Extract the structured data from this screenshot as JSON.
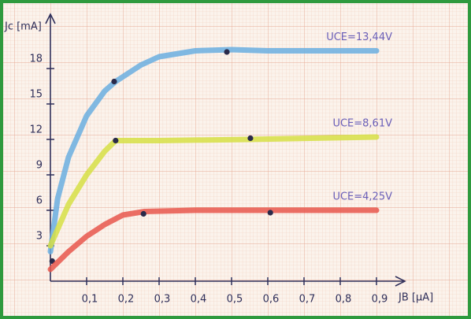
{
  "chart_data": {
    "type": "line",
    "x_label": "JB [μA]",
    "y_label": "Jc [mA]",
    "xlim": [
      0,
      0.98
    ],
    "ylim": [
      0,
      22.5
    ],
    "xticks": [
      {
        "value": 0.1,
        "label": "0,1"
      },
      {
        "value": 0.2,
        "label": "0,2"
      },
      {
        "value": 0.3,
        "label": "0,3"
      },
      {
        "value": 0.4,
        "label": "0,4"
      },
      {
        "value": 0.5,
        "label": "0,5"
      },
      {
        "value": 0.6,
        "label": "0,6"
      },
      {
        "value": 0.7,
        "label": "0,7"
      },
      {
        "value": 0.8,
        "label": "0,8"
      },
      {
        "value": 0.9,
        "label": "0,9"
      }
    ],
    "yticks": [
      3,
      6,
      9,
      12,
      15,
      18
    ],
    "series": [
      {
        "name": "UCE=13,44V",
        "color": "#6aaee0",
        "x": [
          0,
          0.02,
          0.05,
          0.1,
          0.15,
          0.18,
          0.25,
          0.3,
          0.4,
          0.5,
          0.6,
          0.9
        ],
        "values": [
          2.5,
          7,
          10.5,
          14,
          16.1,
          16.9,
          18.3,
          19,
          19.5,
          19.6,
          19.5,
          19.5
        ],
        "markers": {
          "x": [
            0.005,
            0.176,
            0.487
          ],
          "values": [
            1.7,
            16.9,
            19.4
          ]
        }
      },
      {
        "name": "UCE=8,61V",
        "color": "#d6df45",
        "x": [
          0,
          0.05,
          0.1,
          0.15,
          0.18,
          0.3,
          0.55,
          0.9
        ],
        "values": [
          3,
          6.5,
          9,
          11,
          11.9,
          11.9,
          12,
          12.2
        ],
        "markers": {
          "x": [
            0.18,
            0.552
          ],
          "values": [
            11.9,
            12.1
          ]
        }
      },
      {
        "name": "UCE=4,25V",
        "color": "#e8564c",
        "x": [
          0,
          0.05,
          0.1,
          0.15,
          0.2,
          0.26,
          0.4,
          0.61,
          0.9
        ],
        "values": [
          1,
          2.5,
          3.8,
          4.8,
          5.6,
          5.9,
          6,
          6,
          6
        ],
        "markers": {
          "x": [
            0.257,
            0.607
          ],
          "values": [
            5.7,
            5.8
          ]
        }
      }
    ]
  }
}
